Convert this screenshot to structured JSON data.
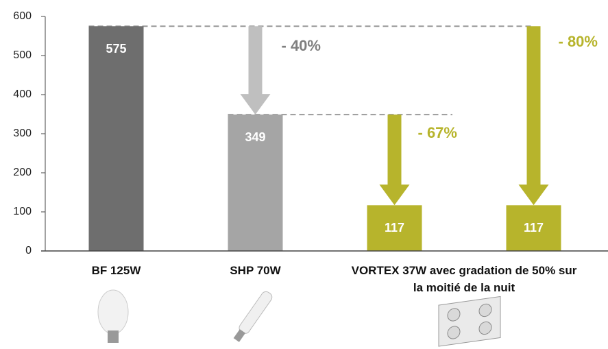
{
  "chart_data": {
    "type": "bar",
    "categories": [
      "BF 125W",
      "SHP 70W",
      "VORTEX 37W avec gradation de 50% sur la moitié de la nuit",
      null
    ],
    "values": [
      575,
      349,
      117,
      117
    ],
    "colors": [
      "#6e6e6e",
      "#a5a5a5",
      "#b7b42c",
      "#b7b42c"
    ],
    "ylim": [
      0,
      600
    ],
    "yticks": [
      0,
      100,
      200,
      300,
      400,
      500,
      600
    ],
    "grid": false,
    "annotations": [
      {
        "text": "- 40%",
        "color": "#bfbfbf",
        "text_color": "#7f7f7f"
      },
      {
        "text": "- 67%",
        "color": "#b7b42c",
        "text_color": "#b7b42c"
      },
      {
        "text": "- 80%",
        "color": "#b7b42c",
        "text_color": "#b7b42c"
      }
    ]
  }
}
